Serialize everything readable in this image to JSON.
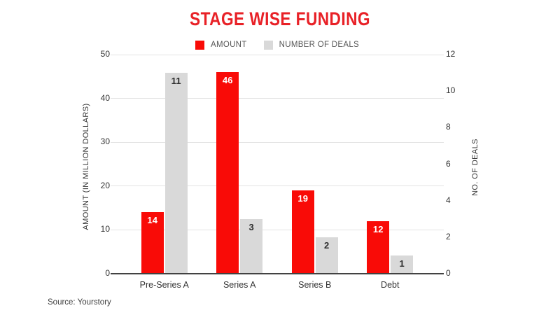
{
  "title": "STAGE WISE FUNDING",
  "source": "Source: Yourstory",
  "legend": [
    {
      "label": "AMOUNT",
      "color": "#f90b07"
    },
    {
      "label": "NUMBER OF DEALS",
      "color": "#d9d9d9"
    }
  ],
  "colors": {
    "title_red": "#e82127",
    "bar_red": "#f90b07",
    "bar_gray": "#d9d9d9",
    "gridline": "#e3e3e3",
    "axis_line": "#424242",
    "tick_text": "#333333",
    "value_on_red": "#ffffff",
    "value_on_gray": "#2e2e2e"
  },
  "chart_data": {
    "type": "bar",
    "title": "STAGE WISE FUNDING",
    "categories": [
      "Pre-Series A",
      "Series A",
      "Series B",
      "Debt"
    ],
    "series": [
      {
        "name": "AMOUNT",
        "axis": "left",
        "color": "#f90b07",
        "label_color": "#ffffff",
        "values": [
          14,
          46,
          19,
          12
        ]
      },
      {
        "name": "NUMBER OF DEALS",
        "axis": "right",
        "color": "#d9d9d9",
        "label_color": "#2e2e2e",
        "values": [
          11,
          3,
          2,
          1
        ]
      }
    ],
    "left_axis": {
      "title": "AMOUNT (IN MILLION DOLLARS)",
      "min": 0,
      "max": 50,
      "ticks": [
        0,
        10,
        20,
        30,
        40,
        50
      ]
    },
    "right_axis": {
      "title": "NO. OF DEALS",
      "min": 0,
      "max": 12,
      "ticks": [
        0,
        2,
        4,
        6,
        8,
        10,
        12
      ]
    },
    "grid": true,
    "legend_position": "top",
    "value_labels": "inside-top"
  }
}
